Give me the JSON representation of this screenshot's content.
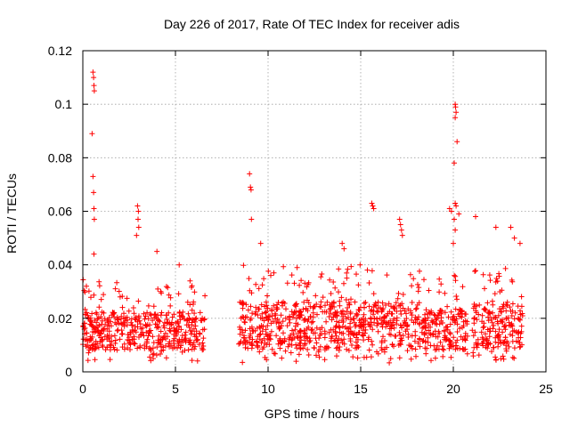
{
  "chart_data": {
    "type": "scatter",
    "title": "Day 226 of 2017, Rate Of TEC Index for receiver adis",
    "xlabel": "GPS time / hours",
    "ylabel": "ROTI / TECUs",
    "xlim": [
      0,
      25
    ],
    "ylim": [
      0,
      0.12
    ],
    "xticks": [
      0,
      5,
      10,
      15,
      20,
      25
    ],
    "xtick_labels": [
      "0",
      "5",
      "10",
      "15",
      "20",
      "25"
    ],
    "yticks": [
      0,
      0.02,
      0.04,
      0.06,
      0.08,
      0.1,
      0.12
    ],
    "ytick_labels": [
      "0",
      "0.02",
      "0.04",
      "0.06",
      "0.08",
      "0.1",
      "0.12"
    ],
    "grid": true,
    "marker": "plus",
    "marker_color": "#ff0000",
    "series": [
      {
        "name": "ROTI",
        "segments": [
          {
            "x_start": 0.0,
            "x_end": 6.6,
            "y_min": 0.004,
            "y_max": 0.035,
            "y_typical": 0.015
          },
          {
            "x_start": 8.4,
            "x_end": 18.2,
            "y_min": 0.003,
            "y_max": 0.04,
            "y_typical": 0.017
          },
          {
            "x_start": 18.3,
            "x_end": 20.8,
            "y_min": 0.004,
            "y_max": 0.036,
            "y_typical": 0.016
          },
          {
            "x_start": 21.0,
            "x_end": 23.8,
            "y_min": 0.004,
            "y_max": 0.04,
            "y_typical": 0.017
          }
        ],
        "notable_points": [
          {
            "x": 0.55,
            "y": 0.112
          },
          {
            "x": 0.58,
            "y": 0.11
          },
          {
            "x": 0.6,
            "y": 0.107
          },
          {
            "x": 0.62,
            "y": 0.105
          },
          {
            "x": 0.5,
            "y": 0.089
          },
          {
            "x": 0.55,
            "y": 0.073
          },
          {
            "x": 0.58,
            "y": 0.067
          },
          {
            "x": 0.6,
            "y": 0.061
          },
          {
            "x": 0.62,
            "y": 0.057
          },
          {
            "x": 0.6,
            "y": 0.044
          },
          {
            "x": 2.95,
            "y": 0.062
          },
          {
            "x": 3.0,
            "y": 0.06
          },
          {
            "x": 2.98,
            "y": 0.057
          },
          {
            "x": 3.02,
            "y": 0.054
          },
          {
            "x": 2.9,
            "y": 0.051
          },
          {
            "x": 9.0,
            "y": 0.074
          },
          {
            "x": 9.05,
            "y": 0.069
          },
          {
            "x": 9.08,
            "y": 0.068
          },
          {
            "x": 9.1,
            "y": 0.057
          },
          {
            "x": 9.6,
            "y": 0.048
          },
          {
            "x": 15.6,
            "y": 0.063
          },
          {
            "x": 15.65,
            "y": 0.062
          },
          {
            "x": 15.7,
            "y": 0.061
          },
          {
            "x": 17.1,
            "y": 0.057
          },
          {
            "x": 17.15,
            "y": 0.055
          },
          {
            "x": 17.2,
            "y": 0.053
          },
          {
            "x": 17.25,
            "y": 0.051
          },
          {
            "x": 19.8,
            "y": 0.061
          },
          {
            "x": 19.9,
            "y": 0.06
          },
          {
            "x": 20.1,
            "y": 0.1
          },
          {
            "x": 20.12,
            "y": 0.099
          },
          {
            "x": 20.15,
            "y": 0.097
          },
          {
            "x": 20.1,
            "y": 0.095
          },
          {
            "x": 20.2,
            "y": 0.086
          },
          {
            "x": 20.05,
            "y": 0.078
          },
          {
            "x": 20.1,
            "y": 0.063
          },
          {
            "x": 20.15,
            "y": 0.062
          },
          {
            "x": 20.3,
            "y": 0.059
          },
          {
            "x": 20.05,
            "y": 0.057
          },
          {
            "x": 20.1,
            "y": 0.053
          },
          {
            "x": 20.0,
            "y": 0.048
          },
          {
            "x": 21.2,
            "y": 0.058
          },
          {
            "x": 22.3,
            "y": 0.054
          },
          {
            "x": 23.1,
            "y": 0.054
          },
          {
            "x": 23.3,
            "y": 0.05
          },
          {
            "x": 23.6,
            "y": 0.048
          },
          {
            "x": 14.0,
            "y": 0.048
          },
          {
            "x": 14.1,
            "y": 0.046
          },
          {
            "x": 4.0,
            "y": 0.045
          },
          {
            "x": 5.2,
            "y": 0.04
          }
        ]
      }
    ]
  }
}
